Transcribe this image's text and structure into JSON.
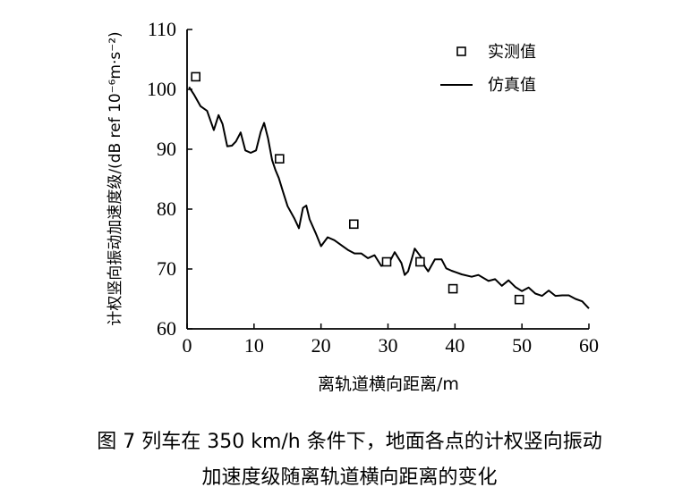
{
  "chart_data": {
    "type": "line",
    "xlabel": "离轨道横向距离/m",
    "ylabel": "计权竖向振动加速度级/(dB ref 10⁻⁶m·s⁻²)",
    "xlim": [
      0,
      60
    ],
    "ylim": [
      60,
      110
    ],
    "xticks": [
      0,
      10,
      20,
      30,
      40,
      50,
      60
    ],
    "yticks": [
      60,
      70,
      80,
      90,
      100,
      110
    ],
    "grid": false,
    "legend_position": "top-right",
    "series": [
      {
        "name": "实测值",
        "kind": "scatter",
        "marker": "square-open",
        "x": [
          1.3,
          13.8,
          24.9,
          29.8,
          34.8,
          39.7,
          49.6
        ],
        "y": [
          102.1,
          88.4,
          77.5,
          71.2,
          71.2,
          66.7,
          64.9
        ]
      },
      {
        "name": "仿真值",
        "kind": "line",
        "x": [
          0.3,
          1.0,
          2.0,
          3.0,
          4.0,
          4.7,
          5.3,
          6.0,
          6.7,
          7.3,
          8.0,
          8.7,
          9.5,
          10.3,
          11.0,
          11.5,
          12.1,
          12.7,
          13.2,
          13.7,
          14.3,
          15.0,
          16.0,
          16.7,
          17.3,
          17.8,
          18.3,
          19.2,
          20.0,
          21.0,
          22.0,
          23.0,
          24.0,
          25.0,
          26.0,
          27.0,
          28.0,
          29.0,
          29.7,
          30.3,
          31.0,
          32.0,
          32.5,
          33.0,
          34.0,
          35.0,
          35.5,
          36.0,
          37.0,
          38.0,
          38.7,
          39.5,
          41.0,
          42.5,
          43.5,
          45.0,
          46.0,
          47.0,
          48.0,
          49.0,
          50.0,
          51.0,
          52.0,
          53.0,
          54.0,
          55.0,
          56.0,
          57.0,
          58.0,
          59.0,
          60.0
        ],
        "y": [
          100.4,
          99.2,
          97.2,
          96.4,
          93.2,
          95.7,
          94.2,
          90.5,
          90.6,
          91.3,
          92.8,
          89.8,
          89.4,
          89.8,
          92.9,
          94.4,
          91.8,
          88.2,
          86.5,
          85.2,
          83.0,
          80.5,
          78.5,
          76.8,
          80.2,
          80.6,
          78.3,
          76.0,
          73.8,
          75.3,
          74.8,
          74.0,
          73.2,
          72.6,
          72.6,
          71.8,
          72.3,
          70.5,
          70.8,
          71.3,
          72.8,
          71.0,
          69.0,
          69.6,
          73.4,
          71.9,
          70.4,
          69.6,
          71.6,
          71.6,
          70.1,
          69.7,
          69.1,
          68.7,
          69.0,
          68.0,
          68.3,
          67.2,
          68.1,
          67.0,
          66.3,
          66.9,
          65.9,
          65.5,
          66.4,
          65.5,
          65.6,
          65.6,
          65.0,
          64.6,
          63.4
        ]
      }
    ]
  },
  "caption": {
    "line1": "图 7   列车在 350 km/h 条件下，地面各点的计权竖向振动",
    "line2": "加速度级随离轨道横向距离的变化"
  },
  "colors": {
    "line": "#000000",
    "marker_stroke": "#000000",
    "background": "#ffffff"
  }
}
